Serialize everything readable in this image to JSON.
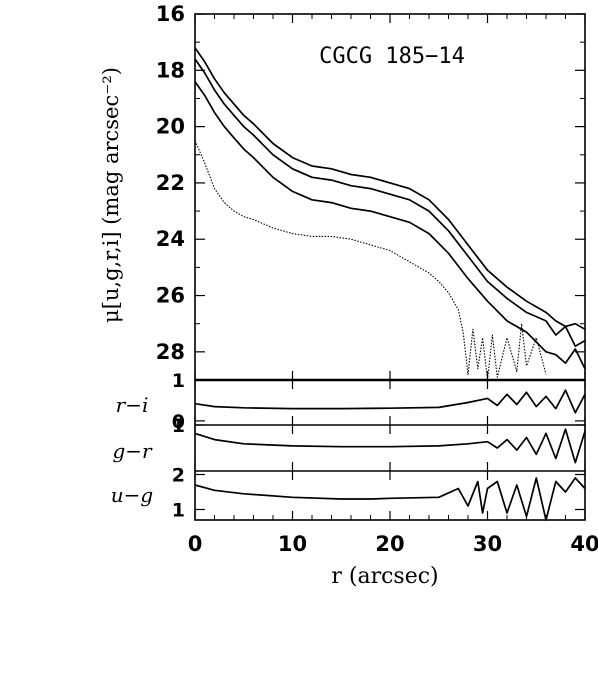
{
  "chart_data": {
    "type": "line",
    "title": "CGCG 185−14",
    "xlabel": "r (arcsec)",
    "xlim": [
      0,
      40
    ],
    "x_ticks": [
      "0",
      "10",
      "20",
      "30",
      "40"
    ],
    "panels": [
      {
        "id": "profile",
        "ylabel": "μ[u,g,r,i] (mag arcsec⁻²)",
        "ylim": [
          16,
          29
        ],
        "inverted": true,
        "y_ticks": [
          "16",
          "18",
          "20",
          "22",
          "24",
          "26",
          "28"
        ],
        "series": [
          {
            "style": "solid",
            "x": [
              0,
              1,
              2,
              3,
              4,
              5,
              6,
              8,
              10,
              12,
              14,
              16,
              18,
              20,
              22,
              24,
              26,
              28,
              30,
              32,
              34,
              36,
              37,
              38,
              39,
              40
            ],
            "y": [
              17.2,
              17.7,
              18.3,
              18.8,
              19.2,
              19.6,
              19.9,
              20.6,
              21.1,
              21.4,
              21.5,
              21.7,
              21.8,
              22.0,
              22.2,
              22.6,
              23.3,
              24.2,
              25.1,
              25.7,
              26.2,
              26.6,
              26.9,
              27.1,
              27.0,
              27.2
            ]
          },
          {
            "style": "solid",
            "x": [
              0,
              1,
              2,
              3,
              4,
              5,
              6,
              8,
              10,
              12,
              14,
              16,
              18,
              20,
              22,
              24,
              26,
              28,
              30,
              32,
              34,
              36,
              37,
              38,
              39,
              40
            ],
            "y": [
              17.6,
              18.1,
              18.7,
              19.2,
              19.6,
              20.0,
              20.3,
              21.0,
              21.5,
              21.8,
              21.9,
              22.1,
              22.2,
              22.4,
              22.6,
              23.0,
              23.7,
              24.6,
              25.5,
              26.1,
              26.6,
              26.9,
              27.4,
              27.1,
              27.8,
              27.6
            ]
          },
          {
            "style": "solid",
            "x": [
              0,
              1,
              2,
              3,
              4,
              5,
              6,
              8,
              10,
              12,
              14,
              16,
              18,
              20,
              22,
              24,
              26,
              28,
              30,
              32,
              34,
              36,
              37,
              38,
              39,
              40
            ],
            "y": [
              18.4,
              18.9,
              19.5,
              20.0,
              20.4,
              20.8,
              21.1,
              21.8,
              22.3,
              22.6,
              22.7,
              22.9,
              23.0,
              23.2,
              23.4,
              23.8,
              24.5,
              25.4,
              26.2,
              26.9,
              27.3,
              28.0,
              28.1,
              28.4,
              27.9,
              28.6
            ]
          },
          {
            "style": "dotted",
            "x": [
              0,
              1,
              2,
              3,
              4,
              5,
              6,
              8,
              10,
              12,
              14,
              16,
              18,
              20,
              22,
              24,
              25,
              26,
              27,
              27.5,
              28,
              28.5,
              29,
              29.5,
              30,
              30.5,
              31,
              32,
              33,
              33.5,
              34,
              35,
              36
            ],
            "y": [
              20.5,
              21.3,
              22.2,
              22.7,
              23.0,
              23.2,
              23.3,
              23.6,
              23.8,
              23.9,
              23.9,
              24.0,
              24.2,
              24.4,
              24.8,
              25.2,
              25.5,
              25.9,
              26.5,
              27.3,
              28.8,
              27.2,
              28.6,
              27.5,
              29.0,
              27.4,
              28.9,
              27.5,
              28.7,
              27.0,
              28.5,
              27.5,
              28.8
            ]
          }
        ]
      },
      {
        "id": "r-i",
        "ylabel": "r−i",
        "ylim": [
          -0.1,
          1.0
        ],
        "y_ticks": [
          "1",
          "0"
        ],
        "series": [
          {
            "style": "solid",
            "x": [
              0,
              2,
              5,
              10,
              15,
              20,
              25,
              28,
              30,
              31,
              32,
              33,
              34,
              35,
              36,
              37,
              38,
              39,
              40
            ],
            "y": [
              0.42,
              0.35,
              0.32,
              0.3,
              0.3,
              0.31,
              0.33,
              0.45,
              0.55,
              0.38,
              0.65,
              0.4,
              0.7,
              0.35,
              0.6,
              0.3,
              0.75,
              0.2,
              0.65
            ]
          }
        ]
      },
      {
        "id": "g-r",
        "ylabel": "g−r",
        "ylim": [
          -0.1,
          1.0
        ],
        "y_ticks": [
          "1"
        ],
        "series": [
          {
            "style": "solid",
            "x": [
              0,
              2,
              5,
              10,
              15,
              20,
              25,
              28,
              30,
              31,
              32,
              33,
              34,
              35,
              36,
              37,
              38,
              39,
              40
            ],
            "y": [
              0.8,
              0.65,
              0.55,
              0.5,
              0.48,
              0.48,
              0.5,
              0.55,
              0.6,
              0.45,
              0.65,
              0.4,
              0.7,
              0.3,
              0.8,
              0.2,
              0.9,
              0.1,
              0.85
            ]
          }
        ]
      },
      {
        "id": "u-g",
        "ylabel": "u−g",
        "ylim": [
          0.7,
          2.1
        ],
        "y_ticks": [
          "2",
          "1"
        ],
        "series": [
          {
            "style": "solid",
            "x": [
              0,
              2,
              5,
              10,
              15,
              18,
              20,
              25,
              27,
              28,
              29,
              29.5,
              30,
              31,
              32,
              33,
              34,
              35,
              36,
              37,
              38,
              39,
              40
            ],
            "y": [
              1.7,
              1.55,
              1.45,
              1.35,
              1.3,
              1.3,
              1.32,
              1.35,
              1.6,
              1.1,
              1.8,
              0.9,
              1.6,
              1.8,
              0.9,
              1.7,
              0.8,
              1.9,
              0.7,
              1.8,
              1.5,
              1.9,
              1.6
            ]
          }
        ]
      }
    ]
  }
}
